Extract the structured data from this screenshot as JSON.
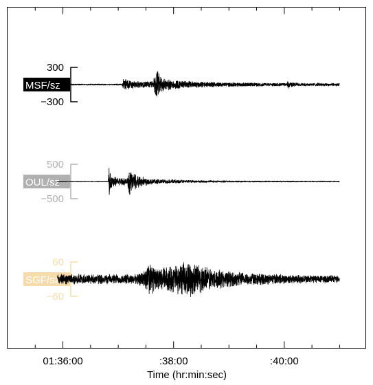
{
  "chart_data": {
    "type": "line",
    "title": "",
    "xlabel": "Time (hr:min:sec)",
    "ylabel": "",
    "x_ticks": [
      {
        "t": 0,
        "label": "01:36:00"
      },
      {
        "t": 120,
        "label": ":38:00"
      },
      {
        "t": 240,
        "label": ":40:00"
      }
    ],
    "xlim": [
      -60,
      328
    ],
    "data_t_range": [
      -6,
      300
    ],
    "series": [
      {
        "name": "MSF/sz",
        "label_bg": "#000000",
        "label_fg": "#ffffff",
        "scale_color": "#000000",
        "scale_top": "300",
        "scale_bottom": "−300",
        "scale_max": 300,
        "noise": 0.035,
        "envelope": [
          [
            -6,
            0.04
          ],
          [
            64,
            0.04
          ],
          [
            66,
            0.42
          ],
          [
            70,
            0.32
          ],
          [
            76,
            0.22
          ],
          [
            86,
            0.18
          ],
          [
            98,
            0.2
          ],
          [
            101,
            1.0
          ],
          [
            104,
            0.65
          ],
          [
            112,
            0.33
          ],
          [
            130,
            0.22
          ],
          [
            170,
            0.13
          ],
          [
            230,
            0.09
          ],
          [
            243,
            0.09
          ],
          [
            244,
            0.3
          ],
          [
            247,
            0.14
          ],
          [
            258,
            0.09
          ],
          [
            300,
            0.08
          ]
        ]
      },
      {
        "name": "OUL/sz",
        "label_bg": "#b0b0b0",
        "label_fg": "#ffffff",
        "scale_color": "#b0b0b0",
        "scale_top": "500",
        "scale_bottom": "−500",
        "scale_max": 500,
        "noise": 0.02,
        "envelope": [
          [
            -6,
            0.02
          ],
          [
            49,
            0.02
          ],
          [
            50,
            0.9
          ],
          [
            53,
            0.35
          ],
          [
            60,
            0.22
          ],
          [
            70,
            0.18
          ],
          [
            72,
            1.0
          ],
          [
            75,
            0.6
          ],
          [
            84,
            0.3
          ],
          [
            100,
            0.14
          ],
          [
            140,
            0.07
          ],
          [
            200,
            0.04
          ],
          [
            300,
            0.03
          ]
        ]
      },
      {
        "name": "SGF/sz",
        "label_bg": "#f5dcaa",
        "label_fg": "#ffffff",
        "scale_color": "#f5dcaa",
        "scale_top": "60",
        "scale_bottom": "−60",
        "scale_max": 60,
        "noise": 0.05,
        "envelope": [
          [
            -6,
            0.3
          ],
          [
            80,
            0.27
          ],
          [
            88,
            0.55
          ],
          [
            90,
            0.72
          ],
          [
            95,
            1.0
          ],
          [
            100,
            0.6
          ],
          [
            110,
            0.7
          ],
          [
            125,
            0.85
          ],
          [
            135,
            1.0
          ],
          [
            150,
            0.85
          ],
          [
            160,
            0.62
          ],
          [
            185,
            0.42
          ],
          [
            220,
            0.3
          ],
          [
            270,
            0.24
          ],
          [
            300,
            0.2
          ]
        ]
      }
    ],
    "grid": false,
    "legend": "none"
  }
}
